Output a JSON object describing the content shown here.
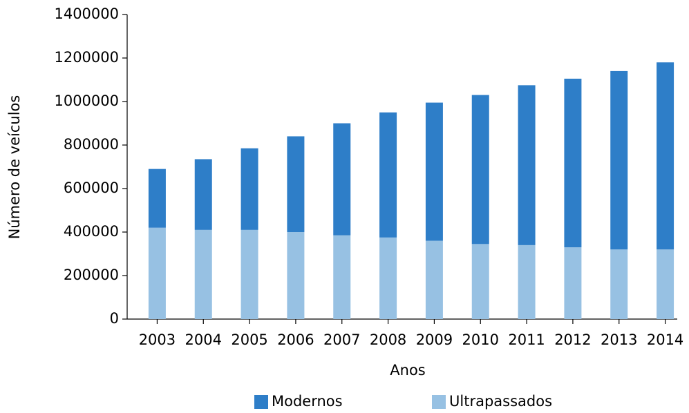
{
  "chart_data": {
    "type": "stacked-bar",
    "categories": [
      "2003",
      "2004",
      "2005",
      "2006",
      "2007",
      "2008",
      "2009",
      "2010",
      "2011",
      "2012",
      "2013",
      "2014"
    ],
    "series": [
      {
        "name": "Modernos",
        "color": "#2e7ec8",
        "values": [
          270000,
          325000,
          375000,
          440000,
          515000,
          575000,
          635000,
          685000,
          735000,
          775000,
          820000,
          860000
        ]
      },
      {
        "name": "Ultrapassados",
        "color": "#97c1e3",
        "values": [
          420000,
          410000,
          410000,
          400000,
          385000,
          375000,
          360000,
          345000,
          340000,
          330000,
          320000,
          320000
        ]
      }
    ],
    "x_label": "Anos",
    "y_label": "Número de veículos",
    "ylim": [
      0,
      1400000
    ],
    "yticks": [
      0,
      200000,
      400000,
      600000,
      800000,
      1000000,
      1200000,
      1400000
    ],
    "grid": false,
    "legend": "bottom"
  }
}
